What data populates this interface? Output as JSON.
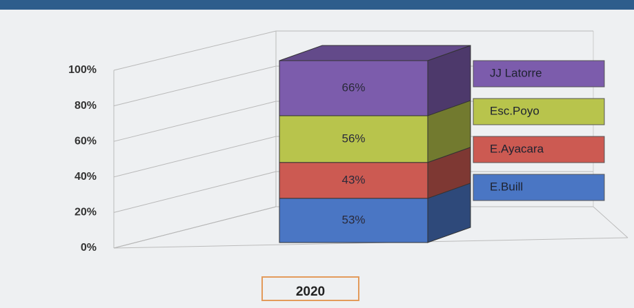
{
  "chart_data": {
    "type": "bar",
    "stacked": "percent",
    "categories": [
      "2020"
    ],
    "series": [
      {
        "name": "E.Buill",
        "color": "#4a76c4",
        "values": [
          53
        ],
        "value_labels": [
          "53%"
        ]
      },
      {
        "name": "E.Ayacara",
        "color": "#cc5a52",
        "values": [
          43
        ],
        "value_labels": [
          "43%"
        ]
      },
      {
        "name": "Esc.Poyo",
        "color": "#b8c44c",
        "values": [
          56
        ],
        "value_labels": [
          "56%"
        ]
      },
      {
        "name": "JJ Latorre",
        "color": "#7c5cac",
        "values": [
          66
        ],
        "value_labels": [
          "66%"
        ]
      }
    ],
    "ylim": [
      0,
      100
    ],
    "yticks": [
      {
        "value": 0,
        "label": "0%"
      },
      {
        "value": 20,
        "label": "20%"
      },
      {
        "value": 40,
        "label": "40%"
      },
      {
        "value": 60,
        "label": "60%"
      },
      {
        "value": 80,
        "label": "80%"
      },
      {
        "value": 100,
        "label": "100%"
      }
    ],
    "grid": true,
    "legend": "right"
  }
}
